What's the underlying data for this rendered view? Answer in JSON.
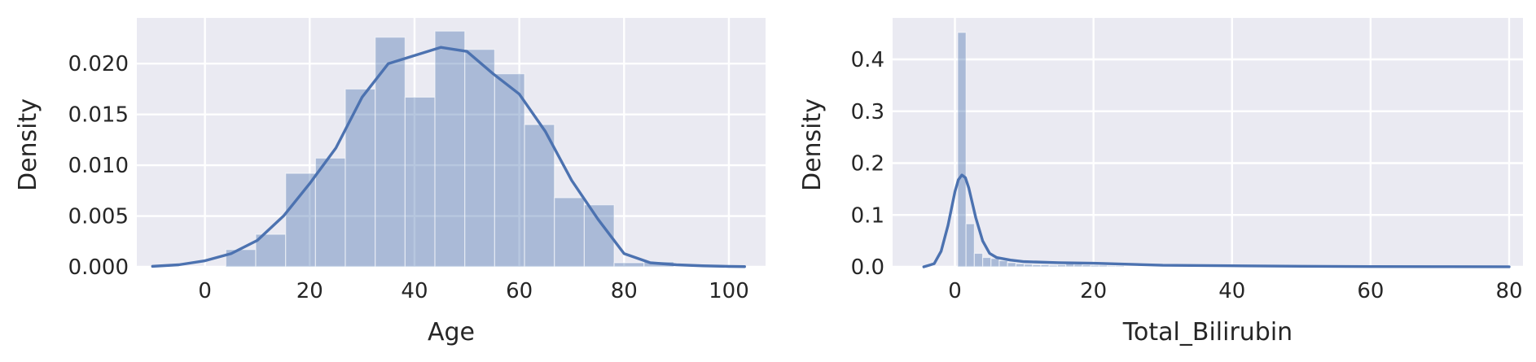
{
  "chart_data": [
    {
      "type": "histogram",
      "xlabel": "Age",
      "ylabel": "Density",
      "xlim": [
        -13,
        107
      ],
      "ylim": [
        0,
        0.0245
      ],
      "xticks": [
        0,
        20,
        40,
        60,
        80,
        100
      ],
      "yticks": [
        0.0,
        0.005,
        0.01,
        0.015,
        0.02
      ],
      "ytick_labels": [
        "0.000",
        "0.005",
        "0.010",
        "0.015",
        "0.020"
      ],
      "grid": true,
      "bin_edges": [
        4,
        9.7,
        15.4,
        21.1,
        26.8,
        32.5,
        38.2,
        43.9,
        49.6,
        55.3,
        61,
        66.7,
        72.4,
        78.1,
        83.8,
        89.5
      ],
      "bin_density": [
        0.0017,
        0.0032,
        0.0092,
        0.0107,
        0.0175,
        0.0226,
        0.0167,
        0.0232,
        0.0214,
        0.019,
        0.014,
        0.0068,
        0.0061,
        0.0004,
        0.0005
      ],
      "kde": {
        "x": [
          -10,
          -5,
          0,
          5,
          10,
          15,
          20,
          25,
          30,
          35,
          40,
          45,
          50,
          55,
          60,
          65,
          70,
          75,
          80,
          85,
          90,
          95,
          100,
          103
        ],
        "y": [
          5e-05,
          0.0002,
          0.0006,
          0.0013,
          0.0026,
          0.005,
          0.0082,
          0.0117,
          0.0167,
          0.02,
          0.0208,
          0.0216,
          0.0212,
          0.019,
          0.017,
          0.0133,
          0.0085,
          0.0047,
          0.0013,
          0.0004,
          0.0002,
          0.0001,
          4e-05,
          2e-05
        ]
      }
    },
    {
      "type": "histogram",
      "xlabel": "Total_Bilirubin",
      "ylabel": "Density",
      "xlim": [
        -9,
        82
      ],
      "ylim": [
        0,
        0.48
      ],
      "xticks": [
        0,
        20,
        40,
        60,
        80
      ],
      "yticks": [
        0.0,
        0.1,
        0.2,
        0.3,
        0.4
      ],
      "ytick_labels": [
        "0.0",
        "0.1",
        "0.2",
        "0.3",
        "0.4"
      ],
      "grid": true,
      "bin_edges": [
        0.4,
        1.6,
        2.8,
        4.0,
        5.2,
        6.4,
        7.6,
        8.8,
        10.0,
        11.2,
        12.4,
        13.6,
        14.8,
        16.0,
        17.2,
        18.4,
        19.6,
        20.8,
        22.0,
        23.2,
        24.4
      ],
      "bin_density": [
        0.452,
        0.083,
        0.026,
        0.018,
        0.016,
        0.012,
        0.008,
        0.006,
        0.005,
        0.004,
        0.004,
        0.003,
        0.004,
        0.006,
        0.005,
        0.004,
        0.003,
        0.003,
        0.002,
        0.002
      ],
      "kde": {
        "x": [
          -4.5,
          -3,
          -2,
          -1,
          0,
          0.5,
          1,
          1.5,
          2,
          3,
          4,
          5,
          6,
          8,
          10,
          15,
          20,
          25,
          30,
          40,
          50,
          60,
          70,
          80
        ],
        "y": [
          0.0,
          0.006,
          0.03,
          0.08,
          0.145,
          0.168,
          0.177,
          0.172,
          0.152,
          0.095,
          0.05,
          0.026,
          0.018,
          0.013,
          0.01,
          0.008,
          0.007,
          0.005,
          0.003,
          0.002,
          0.001,
          0.0005,
          0.0003,
          0.0001
        ]
      }
    }
  ],
  "colors": {
    "plot_background": "#eaeaf2",
    "grid": "#ffffff",
    "bar_fill": "#4c72b0",
    "bar_opacity": 0.4,
    "kde_line": "#4c72b0",
    "text": "#262626"
  }
}
